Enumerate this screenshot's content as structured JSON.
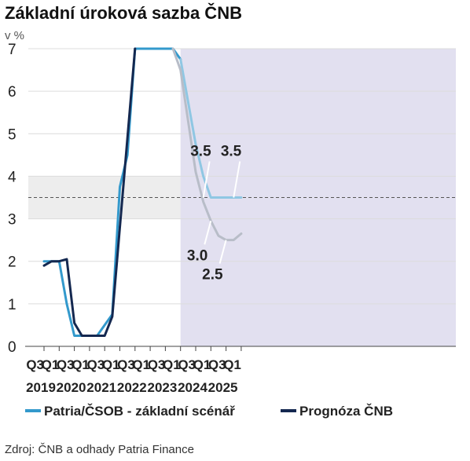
{
  "chart_data": {
    "type": "line",
    "title": "Základní úroková sazba ČNB",
    "ylabel": "v %",
    "xlabel": "",
    "ylim": [
      0,
      7
    ],
    "yticks": [
      0,
      1,
      2,
      3,
      4,
      5,
      6,
      7
    ],
    "grid": "horizontal",
    "legend_position": "bottom",
    "forecast_band": {
      "from": "2024 Q1",
      "to": "end",
      "color": "#e2e0f0"
    },
    "neutral_band": {
      "from": 3.0,
      "to": 4.0,
      "color": "#ededed"
    },
    "reference_line": {
      "value": 3.5,
      "style": "dashed",
      "color": "#555555"
    },
    "quarter_ticks": [
      "Q3",
      "Q1",
      "Q3",
      "Q1",
      "Q3",
      "Q1",
      "Q3",
      "Q1",
      "Q3",
      "Q1",
      "Q3",
      "Q1",
      "Q3",
      "Q1"
    ],
    "year_labels": [
      "2019",
      "2020",
      "2021",
      "2022",
      "2023",
      "2024",
      "2025"
    ],
    "series": [
      {
        "name": "Patria/ČSOB - základní scénář",
        "color": "#3399cc",
        "points": [
          [
            "2019 Q3",
            2.0
          ],
          [
            "2019 Q4",
            2.0
          ],
          [
            "2020 Q1",
            2.0
          ],
          [
            "2020 Q2",
            1.0
          ],
          [
            "2020 Q3",
            0.25
          ],
          [
            "2020 Q4",
            0.25
          ],
          [
            "2021 Q1",
            0.25
          ],
          [
            "2021 Q2",
            0.25
          ],
          [
            "2021 Q3",
            0.5
          ],
          [
            "2021 Q4",
            0.75
          ],
          [
            "2022 Q1",
            3.75
          ],
          [
            "2022 Q2",
            4.5
          ],
          [
            "2022 Q3",
            7.0
          ],
          [
            "2022 Q4",
            7.0
          ],
          [
            "2023 Q1",
            7.0
          ],
          [
            "2023 Q2",
            7.0
          ],
          [
            "2023 Q3",
            7.0
          ],
          [
            "2023 Q4",
            7.0
          ],
          [
            "2024 Q1",
            6.75
          ]
        ]
      },
      {
        "name": "Patria/ČSOB - základní scénář (prognóza)",
        "color": "#8fc7e3",
        "points": [
          [
            "2024 Q1",
            6.75
          ],
          [
            "2024 Q2",
            5.75
          ],
          [
            "2024 Q3",
            4.75
          ],
          [
            "2024 Q4",
            4.0
          ],
          [
            "2025 Q1",
            3.5
          ],
          [
            "2025 Q2",
            3.5
          ],
          [
            "2025 Q3",
            3.5
          ],
          [
            "2025 Q4",
            3.5
          ],
          [
            "2026 Q1",
            3.5
          ]
        ]
      },
      {
        "name": "Prognóza ČNB",
        "color": "#142850",
        "points": [
          [
            "2019 Q3",
            1.9
          ],
          [
            "2019 Q4",
            2.0
          ],
          [
            "2020 Q1",
            2.0
          ],
          [
            "2020 Q2",
            2.05
          ],
          [
            "2020 Q3",
            0.55
          ],
          [
            "2020 Q4",
            0.25
          ],
          [
            "2021 Q1",
            0.25
          ],
          [
            "2021 Q2",
            0.25
          ],
          [
            "2021 Q3",
            0.25
          ],
          [
            "2021 Q4",
            0.7
          ],
          [
            "2022 Q1",
            2.8
          ],
          [
            "2022 Q2",
            4.9
          ],
          [
            "2022 Q3",
            7.0
          ]
        ]
      },
      {
        "name": "Prognóza ČNB (prognóza)",
        "color": "#b8bdc8",
        "points": [
          [
            "2023 Q4",
            7.0
          ],
          [
            "2024 Q1",
            6.5
          ],
          [
            "2024 Q2",
            5.3
          ],
          [
            "2024 Q3",
            4.1
          ],
          [
            "2024 Q4",
            3.4
          ],
          [
            "2025 Q1",
            2.95
          ],
          [
            "2025 Q2",
            2.6
          ],
          [
            "2025 Q3",
            2.5
          ],
          [
            "2025 Q4",
            2.5
          ],
          [
            "2026 Q1",
            2.65
          ]
        ]
      }
    ],
    "annotations": [
      {
        "text": "3.5",
        "x": "2024 Q4",
        "y": 3.5,
        "anchor_side": "upper-left"
      },
      {
        "text": "3.5",
        "x": "2025 Q4",
        "y": 3.5,
        "anchor_side": "upper-left"
      },
      {
        "text": "3.0",
        "x": "2025 Q1",
        "y": 2.95,
        "anchor_side": "lower-left"
      },
      {
        "text": "2.5",
        "x": "2025 Q3",
        "y": 2.5,
        "anchor_side": "lower-left"
      }
    ],
    "legend": [
      {
        "label": "Patria/ČSOB - základní scénář",
        "color": "#3399cc"
      },
      {
        "label": "Prognóza ČNB",
        "color": "#142850"
      }
    ]
  },
  "source": "Zdroj: ČNB a odhady Patria Finance"
}
